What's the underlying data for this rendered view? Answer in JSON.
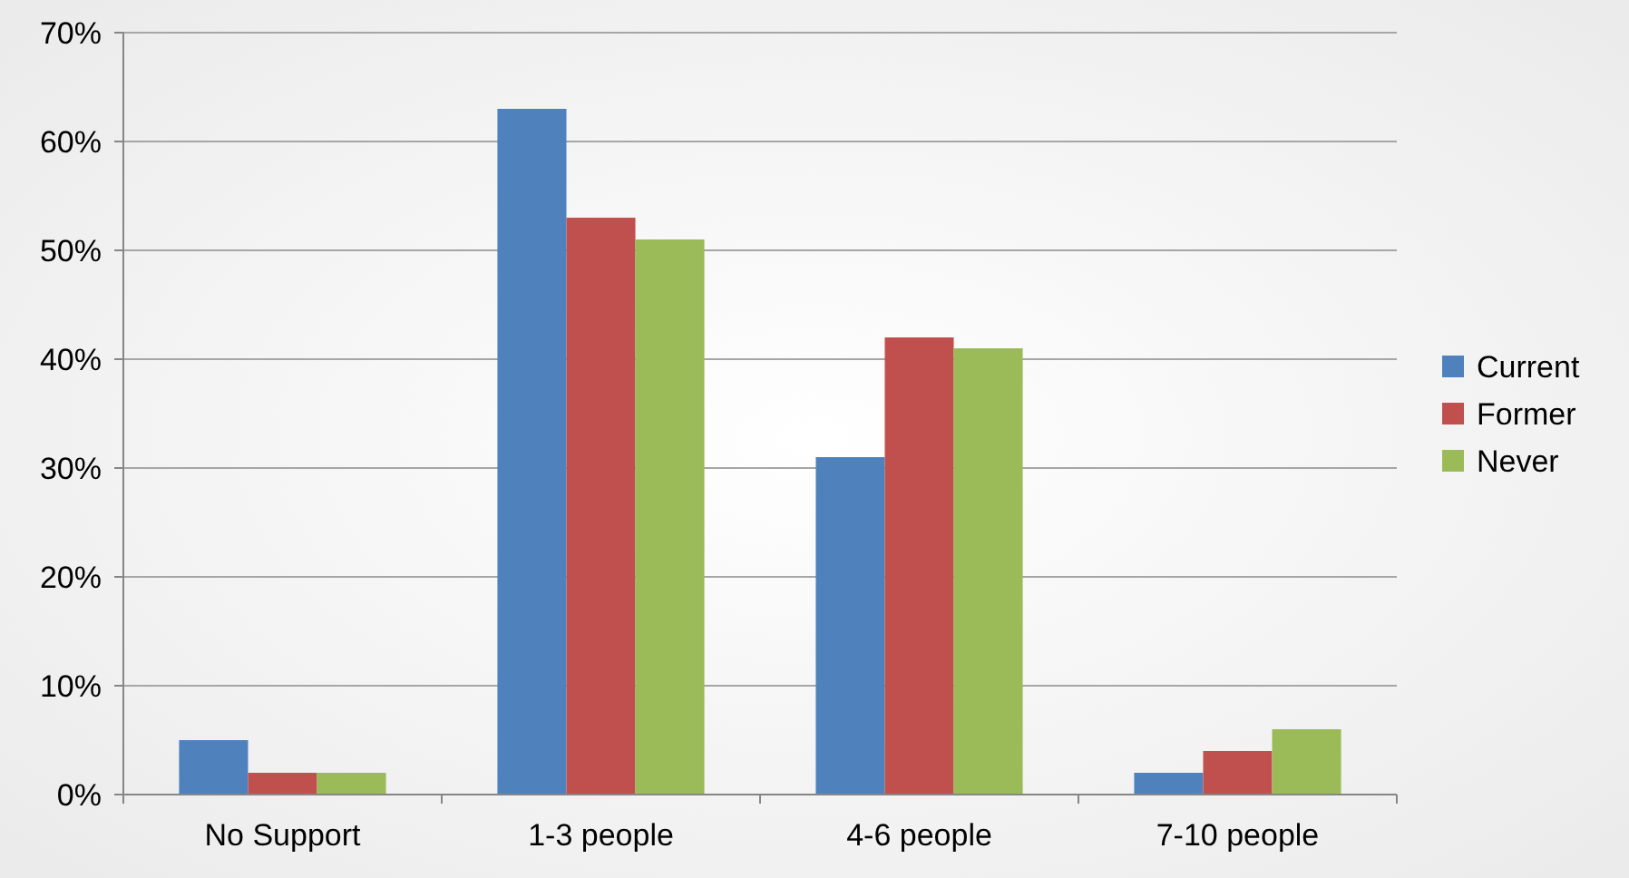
{
  "chart_data": {
    "type": "bar",
    "categories": [
      "No Support",
      "1-3 people",
      "4-6 people",
      "7-10 people"
    ],
    "series": [
      {
        "name": "Current",
        "color": "#4f81bd",
        "values": [
          5,
          63,
          31,
          2
        ]
      },
      {
        "name": "Former",
        "color": "#c0504d",
        "values": [
          2,
          53,
          42,
          4
        ]
      },
      {
        "name": "Never",
        "color": "#9bbb59",
        "values": [
          2,
          51,
          41,
          6
        ]
      }
    ],
    "ylim": [
      0,
      70
    ],
    "yticks": [
      {
        "value": 0,
        "label": "0%"
      },
      {
        "value": 10,
        "label": "10%"
      },
      {
        "value": 20,
        "label": "20%"
      },
      {
        "value": 30,
        "label": "30%"
      },
      {
        "value": 40,
        "label": "40%"
      },
      {
        "value": 50,
        "label": "50%"
      },
      {
        "value": 60,
        "label": "60%"
      },
      {
        "value": 70,
        "label": "70%"
      }
    ],
    "grid": "y",
    "legend": "right"
  }
}
